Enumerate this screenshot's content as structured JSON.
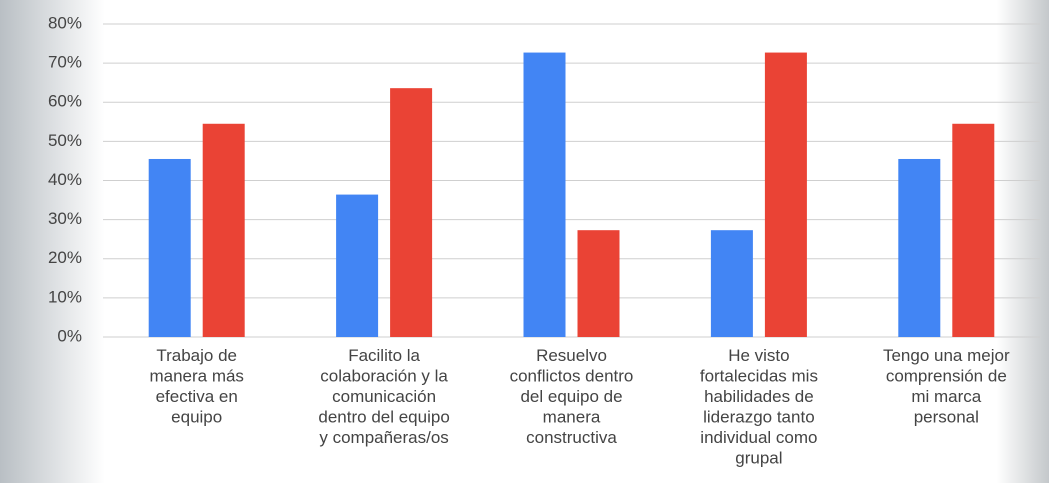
{
  "chart_data": {
    "type": "bar",
    "categories": [
      "Trabajo de\nmanera más\nefectiva en\nequipo",
      "Facilito la\ncolaboración y la\ncomunicación\ndentro del equipo\ny compañeras/os",
      "Resuelvo\nconflictos dentro\ndel equipo de\nmanera\nconstructiva",
      "He visto\nfortalecidas mis\nhabilidades de\nliderazgo tanto\nindividual como\ngrupal",
      "Tengo una mejor\ncomprensión de\nmi marca\npersonal"
    ],
    "series": [
      {
        "color": "#4285f4",
        "values": [
          45.5,
          36.4,
          72.7,
          27.3,
          45.5
        ]
      },
      {
        "color": "#ea4335",
        "values": [
          54.5,
          63.6,
          27.3,
          72.7,
          54.5
        ]
      }
    ],
    "ylim": [
      0,
      80
    ],
    "yticks": [
      {
        "value": 0,
        "label": "0%"
      },
      {
        "value": 10,
        "label": "10%"
      },
      {
        "value": 20,
        "label": "20%"
      },
      {
        "value": 30,
        "label": "30%"
      },
      {
        "value": 40,
        "label": "40%"
      },
      {
        "value": 50,
        "label": "50%"
      },
      {
        "value": 60,
        "label": "60%"
      },
      {
        "value": 70,
        "label": "70%"
      },
      {
        "value": 80,
        "label": "80%"
      }
    ],
    "grid": true
  }
}
